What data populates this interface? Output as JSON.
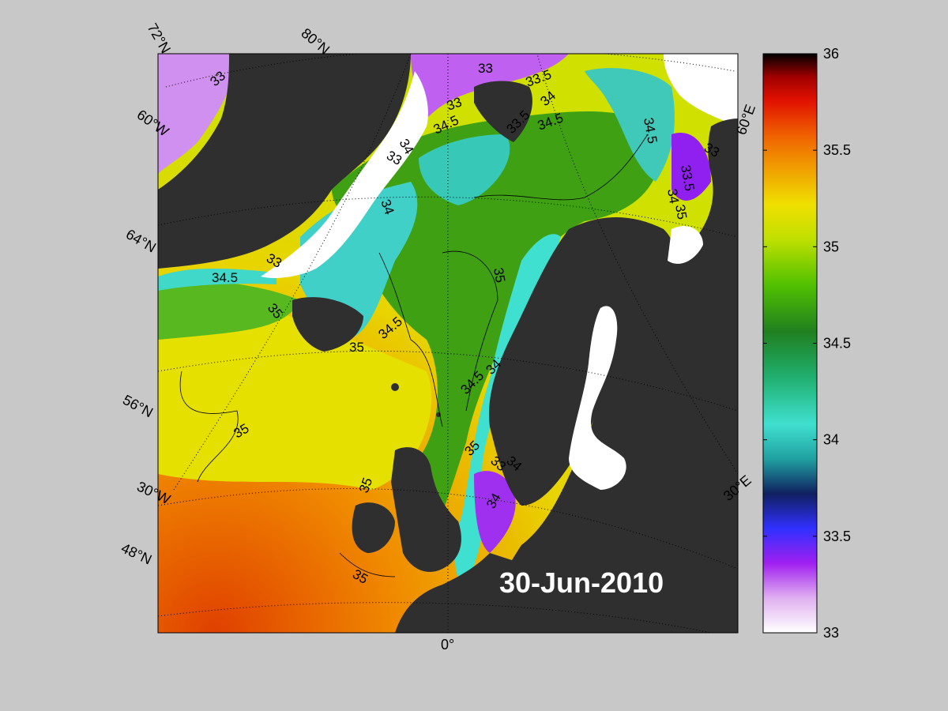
{
  "map": {
    "date": "30-Jun-2010",
    "colors": {
      "background": "#c8c8c8",
      "land": "#2f2f2f",
      "ice": "#ffffff",
      "minor_land": "#707070"
    },
    "grid_labels": {
      "lat": [
        "72°N",
        "80°N",
        "64°N",
        "56°N",
        "48°N"
      ],
      "lon": [
        "60°W",
        "30°W",
        "0°",
        "30°E",
        "60°E"
      ]
    },
    "contour_labels": [
      "33",
      "33",
      "33",
      "33.5",
      "34",
      "34.5",
      "33",
      "33.5",
      "34",
      "34.5",
      "34.5",
      "33",
      "33.5",
      "34",
      "35",
      "34",
      "34.5",
      "33",
      "35",
      "34.5",
      "35",
      "35",
      "35",
      "34.5",
      "34",
      "35",
      "34",
      "33",
      "34",
      "35",
      "35"
    ]
  },
  "colorbar": {
    "min": 33,
    "max": 36,
    "ticks": [
      "36",
      "35.5",
      "35",
      "34.5",
      "34",
      "33.5",
      "33"
    ],
    "stops": [
      "#ffffff",
      "#e0b0f0",
      "#a020f0",
      "#3030ff",
      "#102060",
      "#20a0a0",
      "#40e0d0",
      "#20b070",
      "#208020",
      "#50c000",
      "#c0e000",
      "#f0e000",
      "#f0a000",
      "#f06000",
      "#e01000",
      "#a00000",
      "#000000"
    ]
  }
}
